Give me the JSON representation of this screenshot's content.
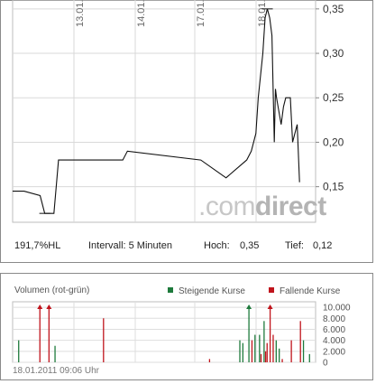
{
  "chart_data": [
    {
      "type": "line",
      "title": "",
      "xlabel": "",
      "ylabel": "",
      "ylim": [
        0.11,
        0.36
      ],
      "y_ticks": [
        "0,35",
        "0,30",
        "0,25",
        "0,20",
        "0,15"
      ],
      "y_tick_values": [
        0.35,
        0.3,
        0.25,
        0.2,
        0.15
      ],
      "x_ticks": [
        "13.01.",
        "14.01.",
        "17.01.",
        "18.01."
      ],
      "grid": true,
      "series": [
        {
          "values": [
            [
              0,
              0.145
            ],
            [
              0.05,
              0.145
            ],
            [
              0.12,
              0.14
            ],
            [
              0.14,
              0.12
            ],
            [
              0.18,
              0.12
            ],
            [
              0.2,
              0.18
            ],
            [
              0.32,
              0.18
            ],
            [
              0.48,
              0.18
            ],
            [
              0.5,
              0.19
            ],
            [
              0.82,
              0.18
            ],
            [
              0.93,
              0.16
            ],
            [
              1.02,
              0.18
            ],
            [
              1.04,
              0.19
            ],
            [
              1.06,
              0.21
            ],
            [
              1.07,
              0.25
            ],
            [
              1.09,
              0.3
            ],
            [
              1.1,
              0.34
            ],
            [
              1.11,
              0.35
            ],
            [
              1.12,
              0.34
            ],
            [
              1.13,
              0.32
            ],
            [
              1.14,
              0.2
            ],
            [
              1.145,
              0.26
            ],
            [
              1.15,
              0.25
            ],
            [
              1.17,
              0.22
            ],
            [
              1.18,
              0.24
            ],
            [
              1.19,
              0.25
            ],
            [
              1.21,
              0.25
            ],
            [
              1.22,
              0.2
            ],
            [
              1.24,
              0.22
            ],
            [
              1.25,
              0.155
            ]
          ]
        }
      ],
      "info": {
        "change": "191,7%HL",
        "interval": "Intervall: 5 Minuten",
        "high_label": "Hoch:",
        "high_value": "0,35",
        "low_label": "Tief:",
        "low_value": "0,12"
      },
      "watermark_prefix": ".com",
      "watermark_suffix": "direct"
    },
    {
      "type": "bar",
      "title": "Volumen (rot-grün)",
      "ylim": [
        0,
        11000
      ],
      "y_ticks": [
        "10.000",
        "8.000",
        "6.000",
        "4.000",
        "2.000",
        "0"
      ],
      "y_tick_values": [
        10000,
        8000,
        6000,
        4000,
        2000,
        0
      ],
      "legend": [
        {
          "name": "Steigende Kurse",
          "color": "#1e7a3c"
        },
        {
          "name": "Fallende Kurse",
          "color": "#c0141c"
        }
      ],
      "legend_placement": "top-right",
      "bars": [
        {
          "x": 0.02,
          "value": 4000,
          "dir": "up"
        },
        {
          "x": 0.09,
          "value": 11000,
          "dir": "down"
        },
        {
          "x": 0.12,
          "value": 11000,
          "dir": "down"
        },
        {
          "x": 0.14,
          "value": 3000,
          "dir": "up"
        },
        {
          "x": 0.3,
          "value": 8000,
          "dir": "down"
        },
        {
          "x": 0.65,
          "value": 600,
          "dir": "down"
        },
        {
          "x": 0.75,
          "value": 4000,
          "dir": "up"
        },
        {
          "x": 0.76,
          "value": 3500,
          "dir": "up"
        },
        {
          "x": 0.78,
          "value": 11000,
          "dir": "up"
        },
        {
          "x": 0.79,
          "value": 4000,
          "dir": "down"
        },
        {
          "x": 0.8,
          "value": 5000,
          "dir": "up"
        },
        {
          "x": 0.815,
          "value": 5000,
          "dir": "up"
        },
        {
          "x": 0.82,
          "value": 1500,
          "dir": "down"
        },
        {
          "x": 0.83,
          "value": 7500,
          "dir": "up"
        },
        {
          "x": 0.835,
          "value": 2000,
          "dir": "down"
        },
        {
          "x": 0.84,
          "value": 3500,
          "dir": "down"
        },
        {
          "x": 0.85,
          "value": 11000,
          "dir": "down"
        },
        {
          "x": 0.86,
          "value": 5000,
          "dir": "down"
        },
        {
          "x": 0.87,
          "value": 4000,
          "dir": "up"
        },
        {
          "x": 0.88,
          "value": 2500,
          "dir": "up"
        },
        {
          "x": 0.89,
          "value": 600,
          "dir": "down"
        },
        {
          "x": 0.92,
          "value": 4000,
          "dir": "down"
        },
        {
          "x": 0.95,
          "value": 7500,
          "dir": "down"
        },
        {
          "x": 0.96,
          "value": 4000,
          "dir": "up"
        },
        {
          "x": 0.98,
          "value": 1500,
          "dir": "up"
        }
      ],
      "timestamp": "18.01.2011 09:06 Uhr"
    }
  ]
}
